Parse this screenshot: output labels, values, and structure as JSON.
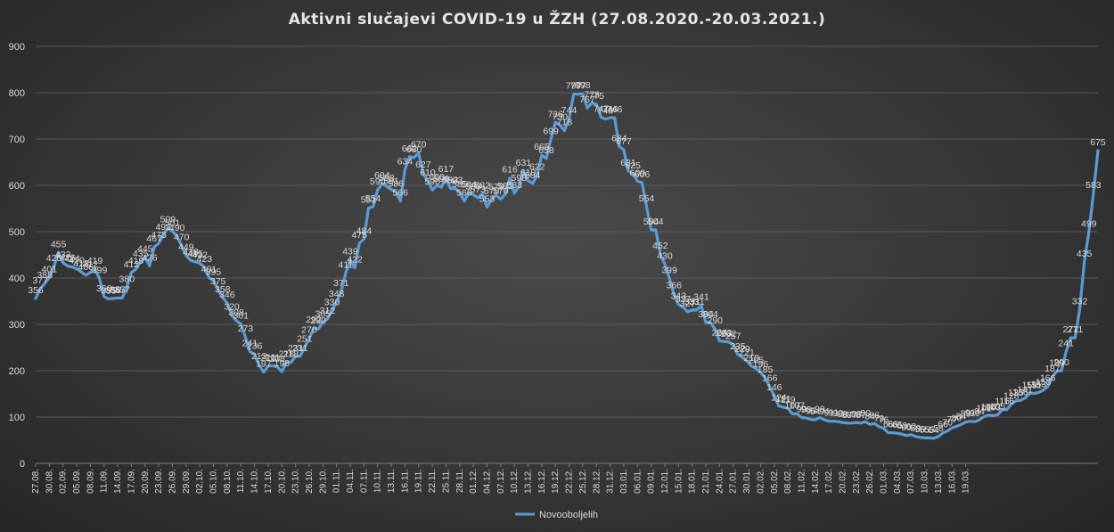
{
  "chart_data": {
    "type": "line",
    "title": "Aktivni  slučajevi  COVID-19  u  ŽZH (27.08.2020.-20.03.2021.)",
    "xlabel": "",
    "ylabel": "",
    "ylim": [
      0,
      900
    ],
    "yticks": [
      0,
      100,
      200,
      300,
      400,
      500,
      600,
      700,
      800,
      900
    ],
    "grid": true,
    "legend_position": "bottom",
    "line_color": "#5b9bd5",
    "x_tick_labels": [
      "27.08.",
      "30.08.",
      "02.09.",
      "05.09.",
      "08.09.",
      "11.09.",
      "14.09.",
      "17.09.",
      "20.09.",
      "23.09.",
      "26.09.",
      "29.09.",
      "02.10.",
      "05.10.",
      "08.10.",
      "11.10.",
      "14.10.",
      "17.10.",
      "20.10.",
      "23.10.",
      "26.10.",
      "29.10.",
      "01.11.",
      "04.11.",
      "07.11.",
      "10.11.",
      "13.11.",
      "16.11.",
      "19.11.",
      "22.11.",
      "25.11.",
      "28.11.",
      "01.12.",
      "04.12.",
      "07.12.",
      "10.12.",
      "13.12.",
      "16.12.",
      "19.12.",
      "22.12.",
      "25.12.",
      "28.12.",
      "31.12.",
      "03.01.",
      "06.01.",
      "09.01.",
      "12.01.",
      "15.01.",
      "18.01.",
      "21.01.",
      "24.01.",
      "27.01.",
      "30.01.",
      "02.02.",
      "05.02.",
      "08.02.",
      "11.02.",
      "14.02.",
      "17.02.",
      "20.02.",
      "23.02.",
      "26.02.",
      "01.03.",
      "04.03.",
      "07.03.",
      "10.03.",
      "13.03.",
      "16.03.",
      "19.03."
    ],
    "series": [
      {
        "name": "Novooboljelih",
        "values": [
          356,
          377,
          388,
          401,
          425,
          455,
          433,
          426,
          424,
          420,
          413,
          406,
          412,
          419,
          399,
          360,
          355,
          356,
          357,
          357,
          380,
          412,
          419,
          435,
          445,
          426,
          467,
          475,
          492,
          509,
          501,
          490,
          470,
          449,
          438,
          435,
          432,
          423,
          401,
          395,
          375,
          358,
          346,
          320,
          308,
          301,
          273,
          241,
          236,
          213,
          197,
          210,
          211,
          208,
          198,
          218,
          218,
          231,
          231,
          251,
          270,
          292,
          290,
          305,
          312,
          330,
          348,
          371,
          411,
          439,
          422,
          475,
          484,
          551,
          554,
          590,
          604,
          598,
          591,
          586,
          566,
          634,
          662,
          660,
          670,
          627,
          610,
          590,
          600,
          596,
          617,
          593,
          593,
          585,
          566,
          584,
          580,
          573,
          582,
          553,
          570,
          579,
          570,
          581,
          616,
          583,
          598,
          631,
          610,
          604,
          622,
          665,
          658,
          699,
          736,
          730,
          718,
          744,
          797,
          797,
          798,
          767,
          778,
          775,
          747,
          743,
          746,
          746,
          684,
          677,
          631,
          625,
          609,
          606,
          554,
          504,
          504,
          452,
          430,
          399,
          366,
          343,
          337,
          327,
          331,
          331,
          341,
          304,
          304,
          290,
          264,
          263,
          262,
          257,
          235,
          229,
          221,
          210,
          205,
          196,
          185,
          166,
          146,
          124,
          121,
          119,
          107,
          107,
          99,
          98,
          95,
          94,
          99,
          94,
          91,
          91,
          90,
          88,
          87,
          87,
          88,
          87,
          90,
          84,
          86,
          79,
          76,
          66,
          66,
          65,
          63,
          60,
          62,
          58,
          56,
          55,
          55,
          54,
          58,
          66,
          70,
          77,
          80,
          84,
          89,
          91,
          90,
          94,
          101,
          104,
          103,
          105,
          116,
          116,
          128,
          135,
          136,
          141,
          151,
          151,
          153,
          158,
          166,
          187,
          199,
          200,
          241,
          271,
          271,
          332,
          435,
          499,
          583,
          675
        ]
      }
    ]
  }
}
